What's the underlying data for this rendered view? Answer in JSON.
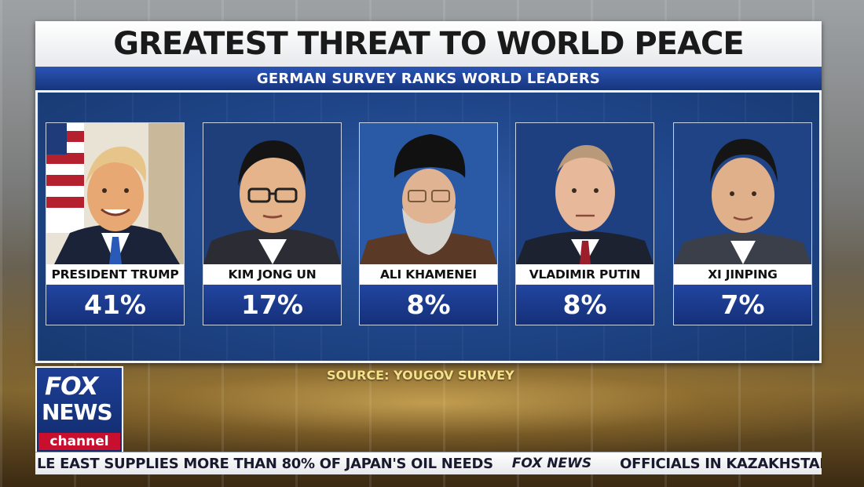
{
  "headline": {
    "title": "GREATEST THREAT TO WORLD PEACE",
    "subtitle": "GERMAN SURVEY RANKS WORLD LEADERS"
  },
  "leaders": [
    {
      "name": "PRESIDENT TRUMP",
      "percent": "41%"
    },
    {
      "name": "KIM JONG UN",
      "percent": "17%"
    },
    {
      "name": "ALI KHAMENEI",
      "percent": "8%"
    },
    {
      "name": "VLADIMIR PUTIN",
      "percent": "8%"
    },
    {
      "name": "XI JINPING",
      "percent": "7%"
    }
  ],
  "source": "SOURCE: YOUGOV SURVEY",
  "logo": {
    "line1": "FOX",
    "line2": "NEWS",
    "line3": "channel"
  },
  "ticker": {
    "left": "LE EAST SUPPLIES MORE THAN 80% OF JAPAN'S OIL NEEDS",
    "brand": "FOX NEWS",
    "right": "OFFICIALS IN KAZAKHSTAN SA"
  },
  "colors": {
    "panel_blue": "#1f4588",
    "subtitle_blue": "#2a54b4",
    "logo_red": "#c8102e",
    "source_gold": "#f3e28a"
  }
}
